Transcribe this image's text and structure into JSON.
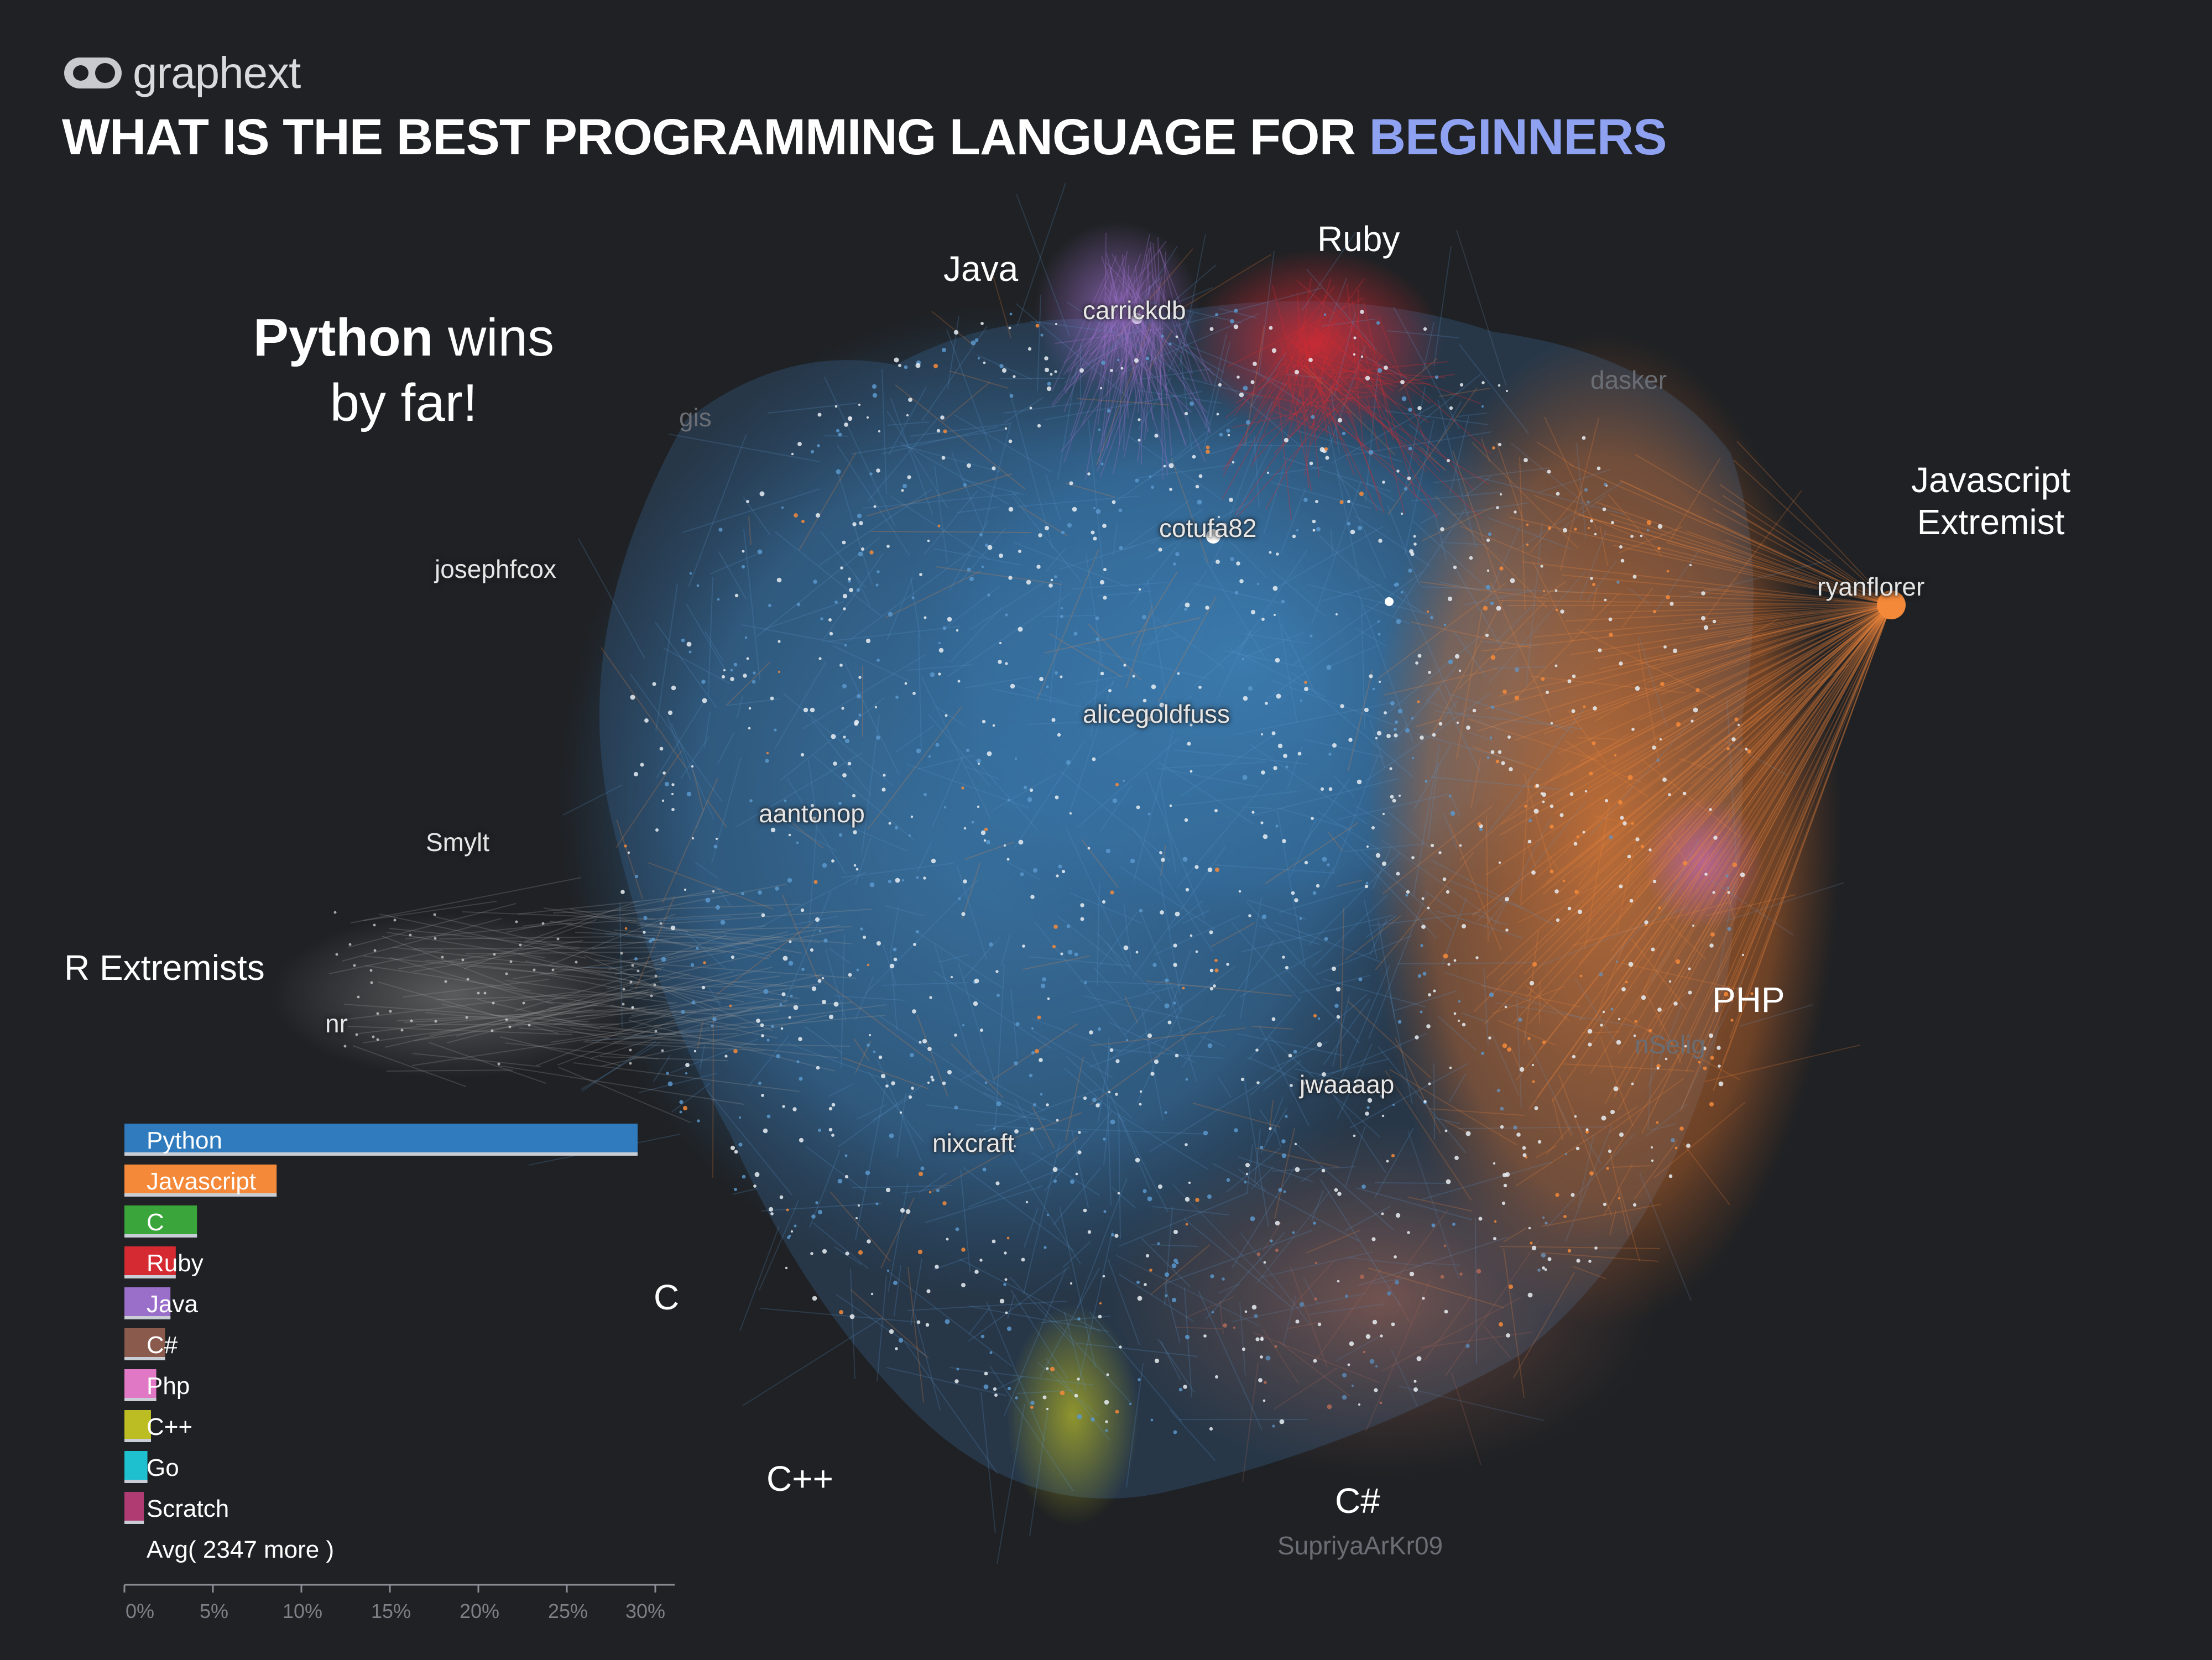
{
  "brand": {
    "name": "graphext"
  },
  "headline": {
    "prefix": "WHAT IS THE BEST PROGRAMMING LANGUAGE FOR",
    "accent": "BEGINNERS"
  },
  "callout": {
    "bold": "Python",
    "rest": "wins",
    "line2": "by far!"
  },
  "colors": {
    "background": "#1f2124",
    "accent": "#8ea2f1",
    "python": "#2f7bbd",
    "javascript": "#f4893a",
    "c": "#3aa53a",
    "ruby": "#d62a33",
    "java": "#9a6fc9",
    "csharp": "#8a5a4d",
    "php": "#e178c5",
    "cpp": "#bcbd22",
    "go": "#1ebfce",
    "scratch": "#b03a72",
    "r": "#8a8a8a"
  },
  "cluster_labels": {
    "java": "Java",
    "ruby": "Ruby",
    "javascript_line1": "Javascript",
    "javascript_line2": "Extremist",
    "r": "R Extremists",
    "php": "PHP",
    "c": "C",
    "cpp": "C++",
    "csharp": "C#"
  },
  "node_labels": {
    "carrickdb": "carrickdb",
    "cotufa82": "cotufa82",
    "josephfcox": "josephfcox",
    "ryanflorer": "ryanflorer",
    "alicegoldfuss": "alicegoldfuss",
    "aantonop": "aantonop",
    "smylt": "Smylt",
    "nr": "nr",
    "jwaaaap": "jwaaaap",
    "nixcraft": "nixcraft",
    "faint_gis": "gis",
    "faint_dasker": "dasker",
    "faint_nselig": "nSelig",
    "faint_supriya": "SupriyaArKr09"
  },
  "chart_data": {
    "type": "bar",
    "orientation": "horizontal",
    "categories": [
      "Python",
      "Javascript",
      "C",
      "Ruby",
      "Java",
      "C#",
      "Php",
      "C++",
      "Go",
      "Scratch",
      "Avg( 2347 more )"
    ],
    "values": [
      29,
      8.6,
      4.1,
      2.9,
      2.6,
      2.3,
      1.8,
      1.5,
      1.3,
      1.1,
      0
    ],
    "colors": [
      "#2f7bbd",
      "#f4893a",
      "#3aa53a",
      "#d62a33",
      "#9a6fc9",
      "#8a5a4d",
      "#e178c5",
      "#bcbd22",
      "#1ebfce",
      "#b03a72",
      "#1f2124"
    ],
    "x_ticks": [
      "0%",
      "5%",
      "10%",
      "15%",
      "20%",
      "25%",
      "30%"
    ],
    "xlim": [
      0,
      30
    ]
  }
}
